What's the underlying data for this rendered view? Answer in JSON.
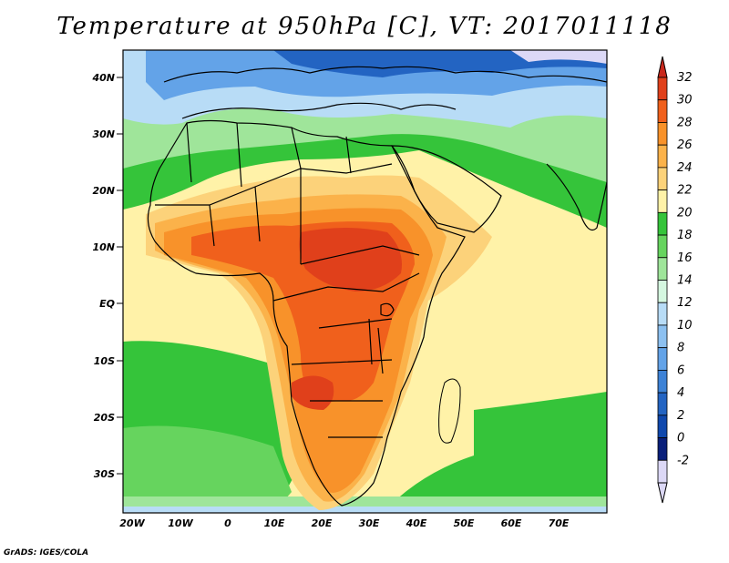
{
  "title": "Temperature at 950hPa [C], VT: 2017011118",
  "credit": "GrADS: IGES/COLA",
  "lat_labels": [
    "40N",
    "30N",
    "20N",
    "10N",
    "EQ",
    "10S",
    "20S",
    "30S"
  ],
  "lon_labels": [
    "20W",
    "10W",
    "0",
    "10E",
    "20E",
    "30E",
    "40E",
    "50E",
    "60E",
    "70E"
  ],
  "colorbar": {
    "labels": [
      "32",
      "30",
      "28",
      "26",
      "24",
      "22",
      "20",
      "18",
      "16",
      "14",
      "12",
      "10",
      "8",
      "6",
      "4",
      "2",
      "0",
      "-2"
    ],
    "colors": [
      "#e0401b",
      "#f0601c",
      "#f8922a",
      "#fbb24a",
      "#fcd27a",
      "#fff2a8",
      "#35c43a",
      "#66d45e",
      "#9fe59a",
      "#d5f7e0",
      "#b8dcf6",
      "#8cc0f0",
      "#63a3e8",
      "#3d82d6",
      "#2364c2",
      "#0f48ad",
      "#091f7a",
      "#dcd8f6"
    ],
    "max_arrow_color": "#c8281c",
    "min_arrow_color": "#dcd8f6"
  },
  "regions": {
    "ocean_warm": "#fff2a8",
    "ocean_mild": "#35c43a",
    "hot_core": "#e0401b",
    "north_cold": "#8cc0f0"
  }
}
